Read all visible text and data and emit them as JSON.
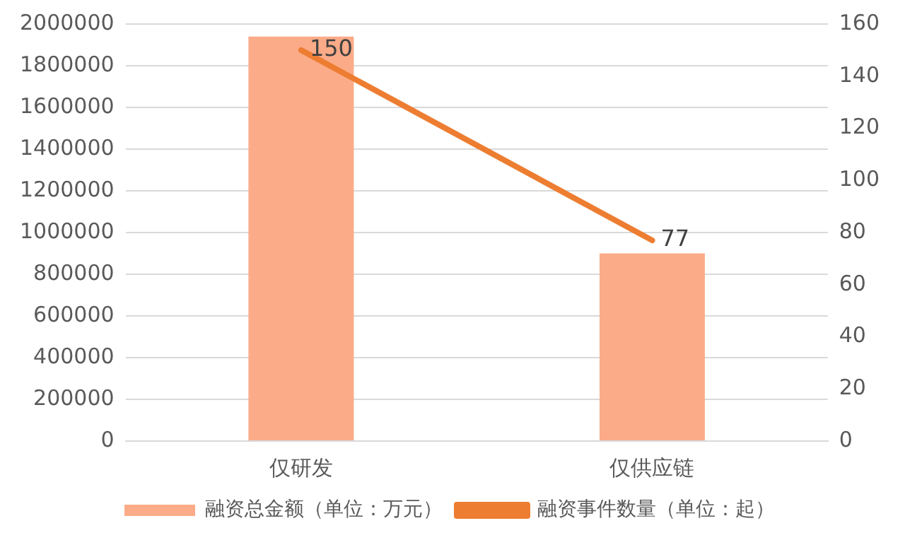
{
  "chart_data": {
    "type": "bar",
    "categories": [
      "仅研发",
      "仅供应链"
    ],
    "series": [
      {
        "name": "融资总金额（单位：万元）",
        "color": "#fbab88",
        "values": [
          1940000,
          900000
        ]
      },
      {
        "name": "融资事件数量（单位：起）",
        "type": "line",
        "axis": "y2",
        "color": "#ed7d31",
        "values": [
          150,
          77
        ],
        "value_labels": [
          "150",
          "77"
        ]
      }
    ],
    "ylim": [
      0,
      2000000
    ],
    "yticks": [
      0,
      200000,
      400000,
      600000,
      800000,
      1000000,
      1200000,
      1400000,
      1600000,
      1800000,
      2000000
    ],
    "y2lim": [
      0,
      160
    ],
    "y2ticks": [
      0,
      20,
      40,
      60,
      80,
      100,
      120,
      140,
      160
    ],
    "grid": "y",
    "legend": "bottom",
    "marker": "none"
  }
}
